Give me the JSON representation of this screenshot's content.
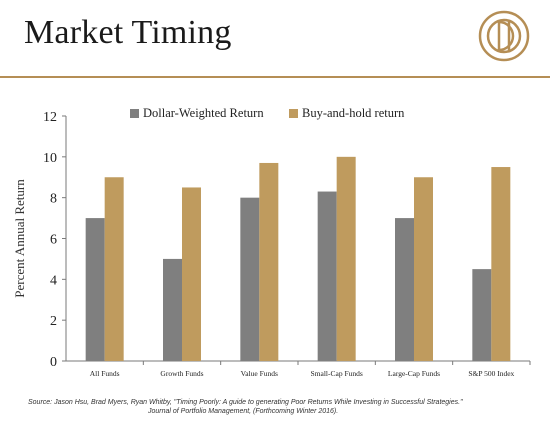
{
  "header": {
    "title": "Market Timing",
    "logo_icon": "gold-circle-logo-icon",
    "accent_color": "#b58e55"
  },
  "chart_data": {
    "type": "bar",
    "title": "",
    "xlabel": "",
    "ylabel": "Percent Annual Return",
    "ylim": [
      0,
      12
    ],
    "yticks": [
      0,
      2,
      4,
      6,
      8,
      10,
      12
    ],
    "grid": false,
    "legend_position": "top",
    "categories": [
      "All Funds",
      "Growth Funds",
      "Value Funds",
      "Small-Cap Funds",
      "Large-Cap Funds",
      "S&P 500 Index"
    ],
    "series": [
      {
        "name": "Dollar-Weighted Return",
        "color": "#7f7f7f",
        "values": [
          7.0,
          5.0,
          8.0,
          8.3,
          7.0,
          4.5
        ]
      },
      {
        "name": "Buy-and-hold return",
        "color": "#bf9b5e",
        "values": [
          9.0,
          8.5,
          9.7,
          10.0,
          9.0,
          9.5
        ]
      }
    ]
  },
  "source": {
    "line1": "Source: Jason Hsu, Brad Myers, Ryan Whitby, \"Timing Poorly: A guide to generating Poor Returns While Investing in Successful Strategies.\"",
    "line2": "Journal of Portfolio Management, (Forthcoming Winter 2016)."
  }
}
